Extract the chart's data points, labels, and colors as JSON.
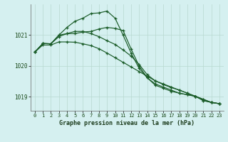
{
  "title": "Graphe pression niveau de la mer (hPa)",
  "bg_color": "#d5f0f0",
  "grid_color": "#b8d8d0",
  "line_color": "#1a5c28",
  "xlim": [
    -0.5,
    23.5
  ],
  "ylim": [
    1018.55,
    1022.0
  ],
  "yticks": [
    1019,
    1020,
    1021
  ],
  "xticks": [
    0,
    1,
    2,
    3,
    4,
    5,
    6,
    7,
    8,
    9,
    10,
    11,
    12,
    13,
    14,
    15,
    16,
    17,
    18,
    19,
    20,
    21,
    22,
    23
  ],
  "series": [
    [
      1020.45,
      1020.73,
      1020.72,
      1020.95,
      1021.05,
      1021.05,
      1021.1,
      1021.12,
      1021.2,
      1021.25,
      1021.22,
      1021.15,
      1020.55,
      1020.0,
      1019.62,
      1019.38,
      1019.28,
      1019.18,
      1019.12,
      1019.07,
      1019.02,
      1018.88,
      1018.82,
      1018.78
    ],
    [
      1020.45,
      1020.73,
      1020.72,
      1021.0,
      1021.25,
      1021.45,
      1021.55,
      1021.7,
      1021.72,
      1021.78,
      1021.55,
      1021.0,
      1020.42,
      1019.92,
      1019.62,
      1019.42,
      1019.32,
      1019.22,
      1019.12,
      1019.07,
      1019.02,
      1018.88,
      1018.82,
      1018.78
    ],
    [
      1020.45,
      1020.73,
      1020.72,
      1021.0,
      1021.05,
      1021.12,
      1021.12,
      1021.05,
      1020.95,
      1020.82,
      1020.7,
      1020.52,
      1020.32,
      1020.05,
      1019.72,
      1019.52,
      1019.42,
      1019.32,
      1019.22,
      1019.12,
      1019.02,
      1018.92,
      1018.82,
      1018.78
    ],
    [
      1020.45,
      1020.68,
      1020.68,
      1020.78,
      1020.78,
      1020.77,
      1020.72,
      1020.66,
      1020.56,
      1020.42,
      1020.27,
      1020.12,
      1019.97,
      1019.82,
      1019.67,
      1019.52,
      1019.4,
      1019.3,
      1019.22,
      1019.12,
      1019.02,
      1018.92,
      1018.82,
      1018.78
    ]
  ]
}
